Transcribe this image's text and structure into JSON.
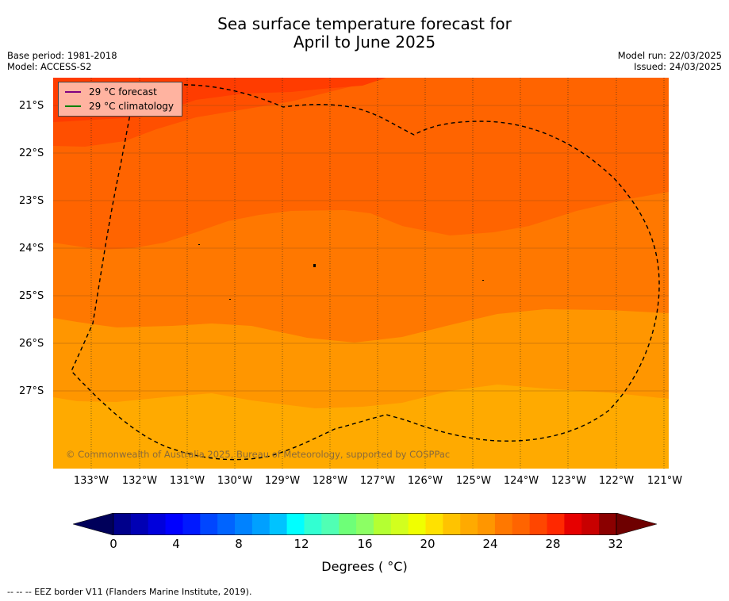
{
  "title": {
    "line1": "Sea surface temperature forecast for",
    "line2": "April to June 2025"
  },
  "meta": {
    "base_period": "Base period: 1981-2018",
    "model": "Model: ACCESS-S2",
    "model_run": "Model run: 22/03/2025",
    "issued": "Issued: 24/03/2025"
  },
  "legend": {
    "forecast_label": "29 °C  forecast",
    "forecast_color": "#800080",
    "climatology_label": "29 °C  climatology",
    "climatology_color": "#008000"
  },
  "copyright": "© Commonwealth of Australia 2025, Bureau of Meteorology, supported by COSPPac",
  "lat_labels": [
    "21°S",
    "22°S",
    "23°S",
    "24°S",
    "25°S",
    "26°S",
    "27°S"
  ],
  "lon_labels": [
    "133°W",
    "132°W",
    "131°W",
    "130°W",
    "129°W",
    "128°W",
    "127°W",
    "126°W",
    "125°W",
    "124°W",
    "123°W",
    "122°W",
    "121°W"
  ],
  "colorbar": {
    "ticks": [
      "0",
      "4",
      "8",
      "12",
      "16",
      "20",
      "24",
      "28",
      "32"
    ],
    "label": "Degrees ( °C)",
    "colors": [
      "#00008b",
      "#0000b4",
      "#0000dc",
      "#0000ff",
      "#0019ff",
      "#0046ff",
      "#0064ff",
      "#0082ff",
      "#00a0ff",
      "#00c3ff",
      "#00ffff",
      "#32ffd2",
      "#50ffb4",
      "#6eff78",
      "#8cff64",
      "#b4ff32",
      "#d2ff1e",
      "#f0ff00",
      "#ffe100",
      "#ffc300",
      "#ffaa00",
      "#ff9600",
      "#ff7800",
      "#ff6400",
      "#ff4600",
      "#ff2800",
      "#e60000",
      "#c80000",
      "#8b0000"
    ],
    "under_color": "#00005a",
    "over_color": "#6e0000"
  },
  "map_colors": {
    "band_24_25": "#ffaa00",
    "band_25_26": "#ff9600",
    "band_26_27": "#ff7800",
    "band_27_28": "#ff6400",
    "band_28_29": "#ff4f00",
    "band_29_30": "#ff3c00"
  },
  "footer": "--  --  -- EEZ border V11 (Flanders Marine Institute, 2019)."
}
